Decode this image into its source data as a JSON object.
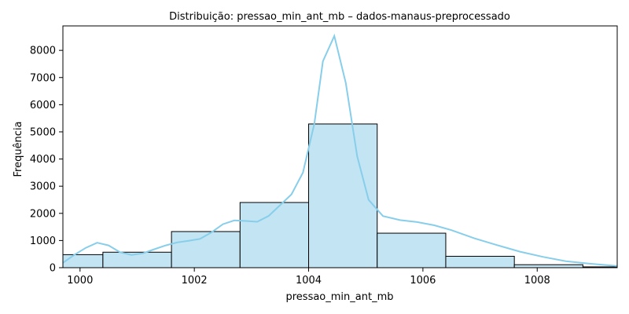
{
  "chart_data": {
    "type": "bar",
    "title": "Distribuição: pressao_min_ant_mb – dados-manaus-preprocessado",
    "xlabel": "pressao_min_ant_mb",
    "ylabel": "Frequência",
    "xlim": [
      999.7,
      1009.4
    ],
    "ylim": [
      0,
      8900
    ],
    "xticks": [
      1000,
      1002,
      1004,
      1006,
      1008
    ],
    "xtick_labels": [
      "1000",
      "1002",
      "1004",
      "1006",
      "1008"
    ],
    "yticks": [
      0,
      1000,
      2000,
      3000,
      4000,
      5000,
      6000,
      7000,
      8000
    ],
    "ytick_labels": [
      "0",
      "1000",
      "2000",
      "3000",
      "4000",
      "5000",
      "6000",
      "7000",
      "8000"
    ],
    "bins": [
      {
        "x0": 999.7,
        "x1": 1000.4,
        "count": 480
      },
      {
        "x0": 1000.4,
        "x1": 1001.6,
        "count": 570
      },
      {
        "x0": 1001.6,
        "x1": 1002.8,
        "count": 1330
      },
      {
        "x0": 1002.8,
        "x1": 1004.0,
        "count": 2400
      },
      {
        "x0": 1004.0,
        "x1": 1005.2,
        "count": 5290
      },
      {
        "x0": 1005.2,
        "x1": 1006.4,
        "count": 1270
      },
      {
        "x0": 1006.4,
        "x1": 1007.6,
        "count": 420
      },
      {
        "x0": 1007.6,
        "x1": 1008.8,
        "count": 110
      },
      {
        "x0": 1008.8,
        "x1": 1009.4,
        "count": 30
      }
    ],
    "kde": {
      "x": [
        999.7,
        999.9,
        1000.1,
        1000.3,
        1000.5,
        1000.7,
        1000.9,
        1001.1,
        1001.3,
        1001.5,
        1001.7,
        1001.9,
        1002.1,
        1002.3,
        1002.5,
        1002.7,
        1002.9,
        1003.1,
        1003.3,
        1003.5,
        1003.7,
        1003.9,
        1004.1,
        1004.25,
        1004.45,
        1004.65,
        1004.85,
        1005.05,
        1005.3,
        1005.6,
        1005.9,
        1006.2,
        1006.5,
        1006.9,
        1007.3,
        1007.7,
        1008.1,
        1008.5,
        1008.9,
        1009.4
      ],
      "y": [
        180,
        470,
        730,
        920,
        820,
        570,
        470,
        530,
        680,
        820,
        930,
        990,
        1060,
        1300,
        1600,
        1740,
        1720,
        1690,
        1900,
        2300,
        2700,
        3500,
        5300,
        7600,
        8530,
        6800,
        4100,
        2500,
        1900,
        1750,
        1680,
        1560,
        1380,
        1080,
        830,
        590,
        400,
        240,
        150,
        60
      ]
    },
    "bar_fill": "#c2e4f3",
    "bar_edge": "#000000",
    "kde_color": "#87ceeb",
    "grid": false,
    "legend": false
  }
}
